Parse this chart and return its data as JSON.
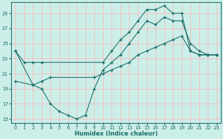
{
  "background_color": "#cceee8",
  "grid_color": "#ffb0b0",
  "line_color": "#1a6e6a",
  "xlim": [
    -0.5,
    23.5
  ],
  "ylim": [
    14.5,
    30.5
  ],
  "yticks": [
    15,
    17,
    19,
    21,
    23,
    25,
    27,
    29
  ],
  "xticks": [
    0,
    1,
    2,
    3,
    4,
    5,
    6,
    7,
    8,
    9,
    10,
    11,
    12,
    13,
    14,
    15,
    16,
    17,
    18,
    19,
    20,
    21,
    22,
    23
  ],
  "xlabel": "Humidex (Indice chaleur)",
  "line1_x": [
    0,
    1,
    2,
    3,
    10,
    11,
    12,
    13,
    14,
    15,
    16,
    17,
    18,
    19,
    20,
    21,
    22,
    23
  ],
  "line1_y": [
    24.0,
    22.5,
    22.5,
    22.5,
    22.5,
    24.0,
    25.5,
    26.5,
    28.0,
    29.5,
    29.5,
    30.0,
    29.0,
    29.0,
    24.0,
    23.5,
    23.5,
    23.5
  ],
  "line2_x": [
    0,
    2,
    3,
    4,
    9,
    10,
    11,
    12,
    13,
    14,
    15,
    16,
    17,
    18,
    19,
    20,
    21,
    22,
    23
  ],
  "line2_y": [
    20.0,
    19.5,
    20.0,
    20.5,
    20.5,
    21.0,
    21.5,
    22.0,
    22.5,
    23.5,
    24.0,
    24.5,
    25.0,
    25.5,
    26.0,
    24.0,
    23.5,
    23.5,
    23.5
  ],
  "line3_x": [
    0,
    2,
    3,
    4,
    5,
    6,
    7,
    8,
    9,
    10,
    11,
    12,
    13,
    14,
    15,
    16,
    17,
    18,
    19,
    20,
    21,
    22,
    23
  ],
  "line3_y": [
    24.0,
    19.5,
    19.0,
    17.0,
    16.0,
    15.5,
    15.0,
    15.5,
    19.0,
    21.5,
    22.5,
    23.5,
    25.0,
    26.5,
    28.0,
    27.5,
    28.5,
    28.0,
    28.0,
    25.0,
    24.0,
    23.5,
    23.5
  ]
}
